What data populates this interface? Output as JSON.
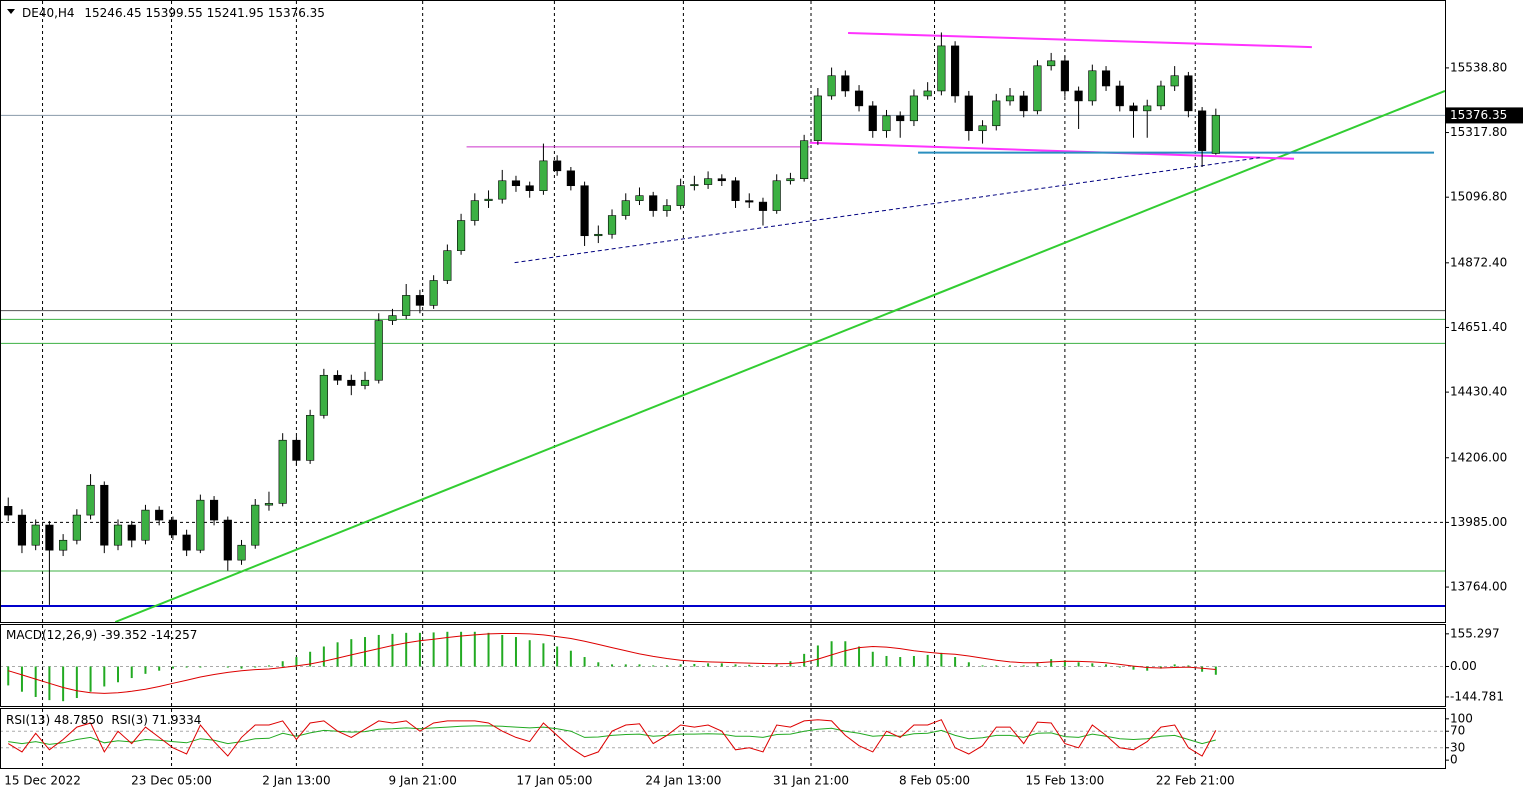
{
  "chart_data": [
    {
      "type": "candlestick",
      "title": "DE40,H4",
      "up_color": "#3cb043",
      "down_color": "#000000",
      "wick_color": "#000000",
      "xlim": [
        -0.6,
        104.7
      ],
      "ylim": [
        13644.5,
        15767.5
      ],
      "yticks": [
        {
          "value": 15538.8,
          "label": "15538.80"
        },
        {
          "value": 15317.8,
          "label": "15317.80"
        },
        {
          "value": 15096.8,
          "label": "15096.80"
        },
        {
          "value": 14872.4,
          "label": "14872.40"
        },
        {
          "value": 14651.4,
          "label": "14651.40"
        },
        {
          "value": 14430.4,
          "label": "14430.40"
        },
        {
          "value": 14206,
          "label": "14206.00"
        },
        {
          "value": 13985,
          "label": "13985.00"
        },
        {
          "value": 13764,
          "label": "13764.00"
        }
      ],
      "xticks": [
        {
          "value": 2.5,
          "label": "15 Dec 2022"
        },
        {
          "value": 11.9,
          "label": "23 Dec 05:00"
        },
        {
          "value": 21,
          "label": "2 Jan 13:00"
        },
        {
          "value": 30.2,
          "label": "9 Jan 21:00"
        },
        {
          "value": 39.8,
          "label": "17 Jan 05:00"
        },
        {
          "value": 49.2,
          "label": "24 Jan 13:00"
        },
        {
          "value": 58.5,
          "label": "31 Jan 21:00"
        },
        {
          "value": 67.5,
          "label": "8 Feb 05:00"
        },
        {
          "value": 77,
          "label": "15 Feb 13:00"
        },
        {
          "value": 86.5,
          "label": "22 Feb 21:00"
        }
      ],
      "candles": [
        [
          14040,
          14070,
          13990,
          14010
        ],
        [
          14010,
          14030,
          13880,
          13907
        ],
        [
          13907,
          13995,
          13890,
          13976
        ],
        [
          13976,
          13990,
          13703,
          13890
        ],
        [
          13890,
          13945,
          13870,
          13924
        ],
        [
          13924,
          14030,
          13910,
          14010
        ],
        [
          14010,
          14150,
          13995,
          14112
        ],
        [
          14112,
          14125,
          13880,
          13907
        ],
        [
          13907,
          13995,
          13890,
          13976
        ],
        [
          13976,
          13990,
          13900,
          13924
        ],
        [
          13924,
          14045,
          13910,
          14027
        ],
        [
          14027,
          14040,
          13975,
          13993
        ],
        [
          13993,
          14005,
          13925,
          13942
        ],
        [
          13942,
          13960,
          13870,
          13890
        ],
        [
          13890,
          14080,
          13880,
          14061
        ],
        [
          14061,
          14075,
          13975,
          13993
        ],
        [
          13993,
          14005,
          13820,
          13856
        ],
        [
          13856,
          13925,
          13840,
          13907
        ],
        [
          13907,
          14065,
          13895,
          14044
        ],
        [
          14044,
          14090,
          14025,
          14050
        ],
        [
          14050,
          14290,
          14040,
          14266
        ],
        [
          14266,
          14280,
          14180,
          14197
        ],
        [
          14197,
          14370,
          14185,
          14351
        ],
        [
          14351,
          14510,
          14340,
          14488
        ],
        [
          14488,
          14505,
          14455,
          14471
        ],
        [
          14471,
          14490,
          14420,
          14453
        ],
        [
          14453,
          14500,
          14440,
          14471
        ],
        [
          14471,
          14700,
          14460,
          14675
        ],
        [
          14675,
          14715,
          14660,
          14692
        ],
        [
          14692,
          14800,
          14680,
          14761
        ],
        [
          14761,
          14780,
          14700,
          14727
        ],
        [
          14727,
          14830,
          14715,
          14812
        ],
        [
          14812,
          14935,
          14800,
          14914
        ],
        [
          14914,
          15040,
          14900,
          15017
        ],
        [
          15017,
          15110,
          15000,
          15085
        ],
        [
          15085,
          15120,
          15060,
          15090
        ],
        [
          15090,
          15190,
          15075,
          15153
        ],
        [
          15153,
          15170,
          15115,
          15136
        ],
        [
          15136,
          15150,
          15095,
          15119
        ],
        [
          15119,
          15280,
          15105,
          15221
        ],
        [
          15221,
          15240,
          15170,
          15187
        ],
        [
          15187,
          15200,
          15120,
          15136
        ],
        [
          15136,
          15150,
          14930,
          14965
        ],
        [
          14965,
          15000,
          14940,
          14970
        ],
        [
          14970,
          15055,
          14955,
          15034
        ],
        [
          15034,
          15110,
          15020,
          15085
        ],
        [
          15085,
          15130,
          15070,
          15102
        ],
        [
          15102,
          15115,
          15030,
          15051
        ],
        [
          15051,
          15090,
          15030,
          15068
        ],
        [
          15068,
          15160,
          15055,
          15136
        ],
        [
          15136,
          15170,
          15120,
          15140
        ],
        [
          15140,
          15185,
          15125,
          15160
        ],
        [
          15160,
          15175,
          15135,
          15153
        ],
        [
          15153,
          15165,
          15060,
          15085
        ],
        [
          15085,
          15110,
          15060,
          15080
        ],
        [
          15080,
          15095,
          15000,
          15051
        ],
        [
          15051,
          15175,
          15040,
          15153
        ],
        [
          15153,
          15180,
          15140,
          15160
        ],
        [
          15160,
          15310,
          15150,
          15290
        ],
        [
          15290,
          15470,
          15275,
          15443
        ],
        [
          15443,
          15540,
          15430,
          15512
        ],
        [
          15512,
          15530,
          15440,
          15460
        ],
        [
          15460,
          15480,
          15390,
          15409
        ],
        [
          15409,
          15425,
          15300,
          15324
        ],
        [
          15324,
          15395,
          15300,
          15375
        ],
        [
          15375,
          15390,
          15300,
          15358
        ],
        [
          15358,
          15465,
          15340,
          15443
        ],
        [
          15443,
          15490,
          15430,
          15460
        ],
        [
          15460,
          15660,
          15445,
          15614
        ],
        [
          15614,
          15630,
          15420,
          15443
        ],
        [
          15443,
          15460,
          15290,
          15324
        ],
        [
          15324,
          15360,
          15280,
          15341
        ],
        [
          15341,
          15450,
          15325,
          15426
        ],
        [
          15426,
          15470,
          15410,
          15443
        ],
        [
          15443,
          15460,
          15370,
          15392
        ],
        [
          15392,
          15565,
          15380,
          15546
        ],
        [
          15546,
          15590,
          15530,
          15563
        ],
        [
          15563,
          15580,
          15440,
          15460
        ],
        [
          15460,
          15475,
          15330,
          15426
        ],
        [
          15426,
          15550,
          15410,
          15529
        ],
        [
          15529,
          15545,
          15460,
          15477
        ],
        [
          15477,
          15495,
          15390,
          15409
        ],
        [
          15409,
          15420,
          15300,
          15392
        ],
        [
          15392,
          15430,
          15300,
          15409
        ],
        [
          15409,
          15495,
          15395,
          15477
        ],
        [
          15477,
          15545,
          15460,
          15512
        ],
        [
          15512,
          15525,
          15370,
          15392
        ],
        [
          15392,
          15405,
          15200,
          15256
        ],
        [
          15246.45,
          15399.55,
          15241.95,
          15376.35
        ]
      ],
      "levels": [
        {
          "value": 13699,
          "color": "#0000cc",
          "style": "thick"
        },
        {
          "value": 13819,
          "color": "#3cb043",
          "style": "solid"
        },
        {
          "value": 13985,
          "color": "#000000",
          "style": "dashed"
        },
        {
          "value": 14597,
          "color": "#3cb043",
          "style": "solid"
        },
        {
          "value": 14679,
          "color": "#3cb043",
          "style": "solid"
        },
        {
          "value": 14709,
          "color": "#555555",
          "style": "solid"
        }
      ],
      "trendlines": [
        {
          "color": "#32cd32",
          "style": "thick",
          "x": [
            7.8,
            104.7
          ],
          "y": [
            13644.5,
            15460
          ]
        },
        {
          "color": "#ff33ff",
          "style": "thick",
          "x": [
            61.2,
            95
          ],
          "y": [
            15658,
            15610
          ]
        },
        {
          "color": "#cc33cc",
          "style": "solid",
          "x": [
            33.4,
            58.4
          ],
          "y": [
            15269,
            15269
          ]
        },
        {
          "color": "#ff33ff",
          "style": "thick",
          "x": [
            58.4,
            93.7
          ],
          "y": [
            15283,
            15228
          ]
        },
        {
          "color": "#2a8fbf",
          "style": "thick",
          "x": [
            66.3,
            103.9
          ],
          "y": [
            15249,
            15249
          ]
        },
        {
          "color": "#000080",
          "style": "dashed",
          "x": [
            36.9,
            91.2
          ],
          "y": [
            14873,
            15232
          ]
        }
      ]
    },
    {
      "type": "macd",
      "title": "MACD(12,26,9)",
      "xlim": [
        -0.6,
        104.7
      ],
      "ylim": [
        -187.9,
        197.3
      ],
      "yticks": [
        155.297,
        {
          "value": 0,
          "label": "0.00"
        },
        -144.781
      ],
      "series": [
        {
          "color": "#22aa22",
          "values": [
            -90,
            -120,
            -145,
            -160,
            -165,
            -150,
            -120,
            -95,
            -75,
            -55,
            -35,
            -20,
            -10,
            -5,
            -5,
            0,
            -5,
            -10,
            -5,
            5,
            25,
            45,
            70,
            95,
            115,
            130,
            140,
            150,
            155,
            160,
            160,
            162,
            165,
            165,
            165,
            160,
            150,
            140,
            125,
            110,
            95,
            75,
            45,
            20,
            10,
            10,
            10,
            5,
            5,
            10,
            12,
            15,
            15,
            10,
            8,
            5,
            10,
            25,
            60,
            100,
            120,
            120,
            95,
            70,
            50,
            45,
            50,
            55,
            65,
            45,
            20,
            5,
            5,
            5,
            5,
            20,
            35,
            30,
            20,
            15,
            10,
            -5,
            -15,
            -20,
            -10,
            10,
            5,
            -25,
            -39.352
          ]
        },
        {
          "color": "#dd0000",
          "values": [
            -20,
            -40,
            -60,
            -80,
            -100,
            -115,
            -125,
            -128,
            -125,
            -118,
            -108,
            -95,
            -80,
            -65,
            -50,
            -38,
            -28,
            -20,
            -15,
            -12,
            -5,
            3,
            12,
            25,
            40,
            55,
            70,
            85,
            100,
            112,
            122,
            130,
            138,
            145,
            150,
            155,
            157,
            157,
            155,
            150,
            142,
            133,
            120,
            105,
            90,
            75,
            60,
            48,
            38,
            30,
            25,
            22,
            20,
            18,
            16,
            14,
            13,
            14,
            20,
            35,
            55,
            75,
            90,
            95,
            92,
            85,
            75,
            68,
            62,
            58,
            50,
            40,
            30,
            22,
            18,
            18,
            22,
            25,
            24,
            22,
            18,
            10,
            2,
            -5,
            -7,
            -5,
            -3,
            -8,
            -14.257
          ]
        }
      ]
    },
    {
      "type": "line",
      "xlim": [
        -0.6,
        104.7
      ],
      "ylim": [
        -19,
        123.8
      ],
      "yticks": [
        100,
        70,
        30,
        0
      ],
      "series": [
        {
          "name": "RSI(13)",
          "legend_value": "48.7850",
          "color": "#22aa22",
          "values": [
            45,
            40,
            45,
            38,
            42,
            50,
            55,
            42,
            47,
            44,
            50,
            48,
            45,
            42,
            52,
            48,
            40,
            45,
            52,
            53,
            65,
            58,
            66,
            72,
            70,
            68,
            69,
            75,
            76,
            78,
            76,
            78,
            80,
            82,
            83,
            83,
            82,
            80,
            78,
            80,
            76,
            70,
            55,
            56,
            60,
            62,
            63,
            58,
            60,
            63,
            63,
            64,
            63,
            58,
            58,
            55,
            62,
            63,
            70,
            75,
            77,
            70,
            65,
            58,
            60,
            58,
            64,
            65,
            72,
            60,
            52,
            54,
            60,
            60,
            55,
            65,
            66,
            57,
            55,
            63,
            58,
            52,
            50,
            52,
            58,
            60,
            50,
            40,
            48.785
          ]
        },
        {
          "name": "RSI(3)",
          "legend_value": "71.9334",
          "color": "#dd0000",
          "values": [
            40,
            20,
            65,
            25,
            50,
            80,
            90,
            20,
            70,
            40,
            80,
            55,
            30,
            15,
            85,
            45,
            10,
            55,
            85,
            85,
            95,
            50,
            90,
            95,
            70,
            55,
            75,
            95,
            90,
            95,
            70,
            90,
            95,
            95,
            95,
            90,
            70,
            55,
            45,
            90,
            60,
            30,
            8,
            20,
            70,
            85,
            88,
            40,
            60,
            85,
            80,
            85,
            70,
            25,
            30,
            20,
            85,
            80,
            95,
            98,
            95,
            60,
            35,
            20,
            70,
            55,
            85,
            85,
            98,
            30,
            15,
            35,
            80,
            80,
            40,
            92,
            90,
            40,
            30,
            85,
            60,
            30,
            25,
            45,
            80,
            85,
            30,
            10,
            71.9334
          ]
        }
      ]
    }
  ]
}
